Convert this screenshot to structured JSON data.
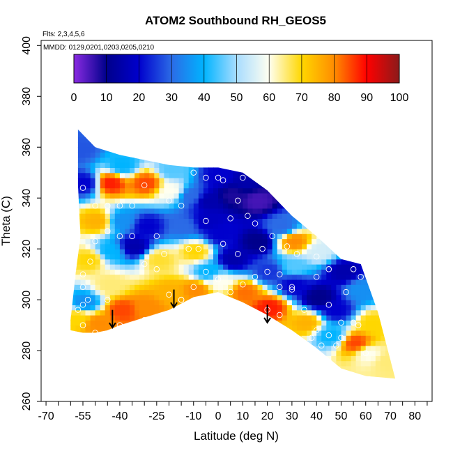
{
  "chart_data": {
    "type": "heatmap",
    "title": "ATOM2 Southbound RH_GEOS5",
    "annotations": {
      "flights": "Flts: 2,3,4,5,6",
      "dates": "MMDD: 0129,0201,0203,0205,0210"
    },
    "xlabel": "Latitude (deg N)",
    "ylabel": "Theta (C)",
    "xlim": [
      -72,
      87
    ],
    "ylim": [
      260,
      402
    ],
    "xticks_minor": [
      -70,
      -65,
      -60,
      -55,
      -50,
      -45,
      -40,
      -35,
      -30,
      -25,
      -20,
      -15,
      -10,
      -5,
      0,
      5,
      10,
      15,
      20,
      25,
      30,
      35,
      40,
      45,
      50,
      55,
      60,
      65,
      70,
      75,
      80,
      85
    ],
    "xtick_labels": [
      "-70",
      "-55",
      "-40",
      "-25",
      "-10",
      "0",
      "10",
      "20",
      "30",
      "40",
      "50",
      "60",
      "70",
      "80"
    ],
    "xtick_label_values": [
      -70,
      -55,
      -40,
      -25,
      -10,
      0,
      10,
      20,
      30,
      40,
      50,
      60,
      70,
      80
    ],
    "yticks": [
      260,
      280,
      300,
      320,
      340,
      360,
      380,
      400
    ],
    "ytick_labels": [
      "260",
      "280",
      "300",
      "320",
      "340",
      "360",
      "380",
      "400"
    ],
    "colorbar": {
      "min": 0,
      "max": 100,
      "ticks": [
        0,
        10,
        20,
        30,
        40,
        50,
        60,
        70,
        80,
        90,
        100
      ],
      "tick_labels": [
        "0",
        "10",
        "20",
        "30",
        "40",
        "50",
        "60",
        "70",
        "80",
        "90",
        "100"
      ],
      "colors": [
        "#8a2be2",
        "#00008b",
        "#0000cd",
        "#2b6be6",
        "#00b4ff",
        "#a8dcff",
        "#fffff0",
        "#ffd700",
        "#ff8c00",
        "#ff0000",
        "#8b1a1a"
      ]
    },
    "coverage_outline": [
      [
        -57,
        367
      ],
      [
        -50,
        360
      ],
      [
        -40,
        357
      ],
      [
        -30,
        355
      ],
      [
        -20,
        353
      ],
      [
        -10,
        352
      ],
      [
        0,
        352
      ],
      [
        10,
        350
      ],
      [
        20,
        343
      ],
      [
        30,
        333
      ],
      [
        40,
        325
      ],
      [
        50,
        316
      ],
      [
        58,
        314
      ],
      [
        65,
        295
      ],
      [
        72,
        269
      ],
      [
        60,
        270
      ],
      [
        50,
        273
      ],
      [
        40,
        281
      ],
      [
        30,
        288
      ],
      [
        20,
        294
      ],
      [
        10,
        299
      ],
      [
        0,
        303
      ],
      [
        -10,
        301
      ],
      [
        -20,
        296
      ],
      [
        -30,
        293
      ],
      [
        -40,
        290
      ],
      [
        -45,
        288
      ],
      [
        -50,
        287
      ],
      [
        -55,
        287
      ],
      [
        -60,
        288
      ],
      [
        -60,
        292
      ],
      [
        -58,
        310
      ],
      [
        -56,
        325
      ],
      [
        -57,
        345
      ]
    ],
    "rh_samples": [
      {
        "x": -55,
        "y": 345,
        "v": 20
      },
      {
        "x": -45,
        "y": 345,
        "v": 88
      },
      {
        "x": -30,
        "y": 345,
        "v": 85
      },
      {
        "x": -20,
        "y": 342,
        "v": 60
      },
      {
        "x": -12,
        "y": 340,
        "v": 30
      },
      {
        "x": -5,
        "y": 338,
        "v": 15
      },
      {
        "x": 5,
        "y": 340,
        "v": 8
      },
      {
        "x": 15,
        "y": 338,
        "v": 5
      },
      {
        "x": 25,
        "y": 328,
        "v": 30
      },
      {
        "x": 30,
        "y": 322,
        "v": 80
      },
      {
        "x": 40,
        "y": 318,
        "v": 55
      },
      {
        "x": 50,
        "y": 310,
        "v": 15
      },
      {
        "x": 57,
        "y": 303,
        "v": 35
      },
      {
        "x": 62,
        "y": 290,
        "v": 70
      },
      {
        "x": 55,
        "y": 282,
        "v": 85
      },
      {
        "x": 45,
        "y": 285,
        "v": 40
      },
      {
        "x": 40,
        "y": 300,
        "v": 10
      },
      {
        "x": 30,
        "y": 305,
        "v": 20
      },
      {
        "x": 20,
        "y": 310,
        "v": 25
      },
      {
        "x": 20,
        "y": 296,
        "v": 88
      },
      {
        "x": 10,
        "y": 302,
        "v": 82
      },
      {
        "x": 5,
        "y": 315,
        "v": 15
      },
      {
        "x": 0,
        "y": 325,
        "v": 20
      },
      {
        "x": -5,
        "y": 310,
        "v": 40
      },
      {
        "x": -10,
        "y": 303,
        "v": 80
      },
      {
        "x": -10,
        "y": 318,
        "v": 70
      },
      {
        "x": -15,
        "y": 328,
        "v": 30
      },
      {
        "x": -20,
        "y": 302,
        "v": 75
      },
      {
        "x": -25,
        "y": 315,
        "v": 68
      },
      {
        "x": -30,
        "y": 328,
        "v": 20
      },
      {
        "x": -35,
        "y": 320,
        "v": 15
      },
      {
        "x": -40,
        "y": 330,
        "v": 35
      },
      {
        "x": -45,
        "y": 318,
        "v": 40
      },
      {
        "x": -50,
        "y": 330,
        "v": 75
      },
      {
        "x": -53,
        "y": 315,
        "v": 70
      },
      {
        "x": -45,
        "y": 305,
        "v": 65
      },
      {
        "x": -40,
        "y": 295,
        "v": 85
      },
      {
        "x": -30,
        "y": 296,
        "v": 80
      },
      {
        "x": -55,
        "y": 298,
        "v": 35
      },
      {
        "x": -58,
        "y": 292,
        "v": 70
      },
      {
        "x": -50,
        "y": 290,
        "v": 80
      },
      {
        "x": -57,
        "y": 358,
        "v": 28
      },
      {
        "x": -40,
        "y": 352,
        "v": 40
      },
      {
        "x": -20,
        "y": 350,
        "v": 45
      },
      {
        "x": 0,
        "y": 348,
        "v": 20
      },
      {
        "x": 10,
        "y": 346,
        "v": 15
      },
      {
        "x": 30,
        "y": 312,
        "v": 45
      },
      {
        "x": 47,
        "y": 295,
        "v": 20
      },
      {
        "x": 60,
        "y": 278,
        "v": 60
      },
      {
        "x": 68,
        "y": 275,
        "v": 65
      },
      {
        "x": 35,
        "y": 290,
        "v": 75
      },
      {
        "x": 15,
        "y": 322,
        "v": 10
      },
      {
        "x": -5,
        "y": 330,
        "v": 18
      },
      {
        "x": 0,
        "y": 306,
        "v": 60
      }
    ],
    "observation_points": [
      [
        -55,
        344
      ],
      [
        -50,
        337
      ],
      [
        -45,
        337
      ],
      [
        -40,
        337
      ],
      [
        -35,
        337
      ],
      [
        -30,
        345
      ],
      [
        -20,
        339
      ],
      [
        -15,
        337
      ],
      [
        -10,
        350
      ],
      [
        -5,
        348
      ],
      [
        0,
        348
      ],
      [
        2,
        347
      ],
      [
        10,
        348
      ],
      [
        8,
        339
      ],
      [
        -5,
        331
      ],
      [
        5,
        332
      ],
      [
        12,
        333
      ],
      [
        15,
        330
      ],
      [
        22,
        325
      ],
      [
        28,
        321
      ],
      [
        32,
        318
      ],
      [
        40,
        317
      ],
      [
        45,
        312
      ],
      [
        52,
        303
      ],
      [
        55,
        312
      ],
      [
        58,
        309
      ],
      [
        50,
        285
      ],
      [
        45,
        286
      ],
      [
        55,
        291
      ],
      [
        40,
        288
      ],
      [
        35,
        296
      ],
      [
        30,
        304
      ],
      [
        25,
        305
      ],
      [
        20,
        311
      ],
      [
        15,
        309
      ],
      [
        10,
        306
      ],
      [
        5,
        303
      ],
      [
        0,
        308
      ],
      [
        -5,
        311
      ],
      [
        -10,
        305
      ],
      [
        -15,
        300
      ],
      [
        -20,
        302
      ],
      [
        -25,
        312
      ],
      [
        -30,
        314
      ],
      [
        -35,
        325
      ],
      [
        -40,
        325
      ],
      [
        -45,
        327
      ],
      [
        -50,
        323
      ],
      [
        -52,
        315
      ],
      [
        -55,
        310
      ],
      [
        -55,
        305
      ],
      [
        -53,
        300
      ],
      [
        -55,
        298
      ],
      [
        -57,
        296
      ],
      [
        -45,
        300
      ],
      [
        -40,
        290
      ],
      [
        -30,
        292
      ],
      [
        -25,
        325
      ],
      [
        -22,
        318
      ],
      [
        -12,
        320
      ],
      [
        -8,
        320
      ],
      [
        2,
        322
      ],
      [
        8,
        318
      ],
      [
        18,
        320
      ],
      [
        25,
        310
      ],
      [
        30,
        305
      ],
      [
        40,
        309
      ],
      [
        45,
        298
      ],
      [
        50,
        291
      ],
      [
        57,
        290
      ],
      [
        60,
        279
      ],
      [
        48,
        282
      ],
      [
        42,
        282
      ],
      [
        38,
        285
      ],
      [
        25,
        294
      ],
      [
        20,
        296
      ],
      [
        18,
        293
      ],
      [
        12,
        296
      ],
      [
        5,
        299
      ],
      [
        -2,
        300
      ],
      [
        -10,
        298
      ],
      [
        -15,
        300
      ],
      [
        -50,
        287
      ],
      [
        -55,
        290
      ]
    ],
    "arrows": [
      {
        "x": -43,
        "y_top": 296,
        "y_bottom": 289
      },
      {
        "x": -18,
        "y_top": 304,
        "y_bottom": 297
      },
      {
        "x": 20,
        "y_top": 298,
        "y_bottom": 291
      }
    ],
    "grid": false,
    "legend": "colorbar-top-inset"
  }
}
